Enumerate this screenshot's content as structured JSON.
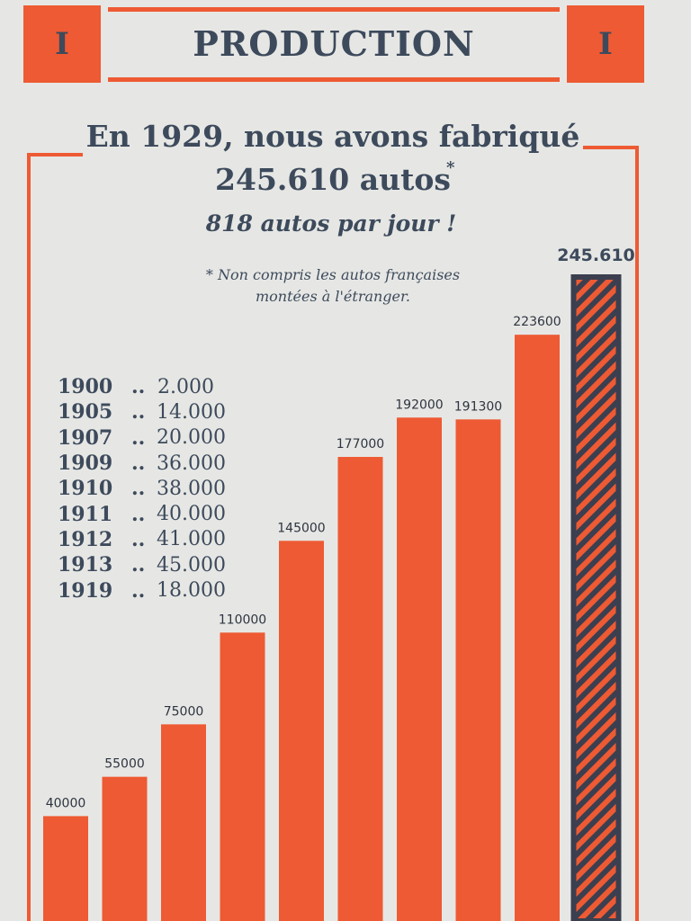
{
  "banner": {
    "left_numeral": "I",
    "title": "PRODUCTION",
    "right_numeral": "I"
  },
  "headline": {
    "line1": "En 1929, nous avons fabriqué",
    "line2": "245.610 autos",
    "asterisk": "*",
    "subheadline": "818 autos par jour !"
  },
  "footnote": {
    "line1": "* Non compris les autos françaises",
    "line2": "montées à l'étranger."
  },
  "early_years": [
    {
      "year": "1900",
      "dots": "..",
      "value": "2.000"
    },
    {
      "year": "1905",
      "dots": "..",
      "value": "14.000"
    },
    {
      "year": "1907",
      "dots": "..",
      "value": "20.000"
    },
    {
      "year": "1909",
      "dots": "..",
      "value": "36.000"
    },
    {
      "year": "1910",
      "dots": "..",
      "value": "38.000"
    },
    {
      "year": "1911",
      "dots": "..",
      "value": "40.000"
    },
    {
      "year": "1912",
      "dots": "..",
      "value": "41.000"
    },
    {
      "year": "1913",
      "dots": "..",
      "value": "45.000"
    },
    {
      "year": "1919",
      "dots": "..",
      "value": "18.000"
    }
  ],
  "chart_data": {
    "type": "bar",
    "values": [
      40000,
      55000,
      75000,
      110000,
      145000,
      177000,
      192000,
      191300,
      223600,
      245610
    ],
    "labels": [
      "40000",
      "55000",
      "75000",
      "110000",
      "145000",
      "177000",
      "192000",
      "191300",
      "223600",
      "245.610"
    ],
    "highlight_last": true,
    "colors": {
      "bar": "#ee5a33",
      "highlight_bar": "#3b3f4f",
      "highlight_stripes": "#ee5a33"
    },
    "grid": false
  }
}
